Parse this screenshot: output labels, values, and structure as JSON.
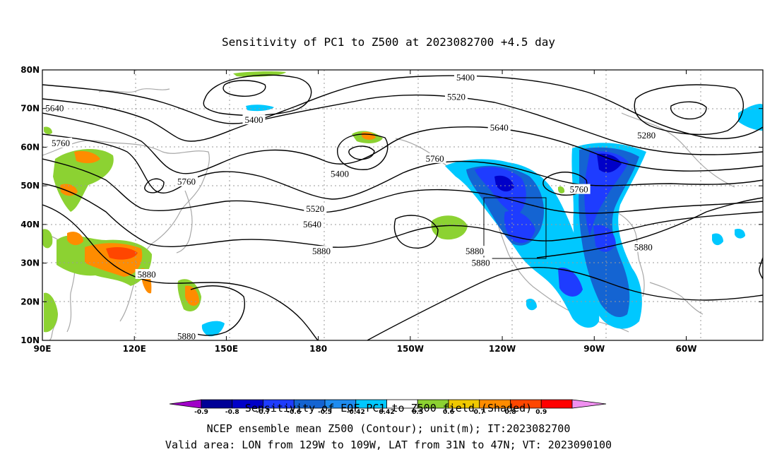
{
  "title": "Sensitivity of PC1 to Z500 at 2023082700 +4.5 day",
  "footer": {
    "line1": "Sensitivity of EOF PC1 to Z500 field (Shaded)",
    "line2": "NCEP ensemble mean Z500 (Contour); unit(m); IT:2023082700",
    "line3": "Valid area: LON from 129W to 109W, LAT from 31N to 47N; VT: 2023090100"
  },
  "chart_data": {
    "type": "heatmap",
    "title": "Sensitivity of PC1 to Z500 at 2023082700 +4.5 day",
    "map_extent": {
      "lon_min": 90,
      "lon_max": 325,
      "lat_min": 10,
      "lat_max": 80
    },
    "grid": true,
    "x_ticks": [
      {
        "lon": 90,
        "label": "90E"
      },
      {
        "lon": 120,
        "label": "120E"
      },
      {
        "lon": 150,
        "label": "150E"
      },
      {
        "lon": 180,
        "label": "180"
      },
      {
        "lon": 210,
        "label": "150W"
      },
      {
        "lon": 240,
        "label": "120W"
      },
      {
        "lon": 270,
        "label": "90W"
      },
      {
        "lon": 300,
        "label": "60W"
      }
    ],
    "y_ticks": [
      {
        "lat": 80,
        "label": "80N"
      },
      {
        "lat": 70,
        "label": "70N"
      },
      {
        "lat": 60,
        "label": "60N"
      },
      {
        "lat": 50,
        "label": "50N"
      },
      {
        "lat": 40,
        "label": "40N"
      },
      {
        "lat": 30,
        "label": "30N"
      },
      {
        "lat": 20,
        "label": "20N"
      },
      {
        "lat": 10,
        "label": "10N"
      }
    ],
    "colorbar": {
      "levels": [
        "-0.9",
        "-0.8",
        "-0.7",
        "-0.6",
        "-0.5",
        "-0.42",
        "0.42",
        "0.5",
        "0.6",
        "0.7",
        "0.8",
        "0.9"
      ],
      "colors": [
        "#a000c8",
        "#000096",
        "#0000c8",
        "#1e3cff",
        "#1464d2",
        "#1e8cf0",
        "#00c8ff",
        "#ffffff",
        "#8cd232",
        "#f0c800",
        "#ff8c00",
        "#ff4600",
        "#ff0000",
        "#f090f0"
      ]
    },
    "valid_area_box": {
      "lon_min": 231,
      "lon_max": 251,
      "lat_min": 31,
      "lat_max": 47
    },
    "contour_levels": [
      5280,
      5400,
      5520,
      5640,
      5760,
      5880
    ],
    "contour_labels": [
      {
        "text": "5640",
        "lon": 94,
        "lat": 70
      },
      {
        "text": "5760",
        "lon": 96,
        "lat": 61
      },
      {
        "text": "5400",
        "lon": 159,
        "lat": 67
      },
      {
        "text": "5400",
        "lon": 228,
        "lat": 78
      },
      {
        "text": "5520",
        "lon": 225,
        "lat": 73
      },
      {
        "text": "5400",
        "lon": 187,
        "lat": 53
      },
      {
        "text": "5760",
        "lon": 137,
        "lat": 51
      },
      {
        "text": "5520",
        "lon": 179,
        "lat": 44
      },
      {
        "text": "5640",
        "lon": 178,
        "lat": 40
      },
      {
        "text": "5880",
        "lon": 181,
        "lat": 33
      },
      {
        "text": "5640",
        "lon": 239,
        "lat": 65
      },
      {
        "text": "5760",
        "lon": 218,
        "lat": 57
      },
      {
        "text": "5760",
        "lon": 265,
        "lat": 49
      },
      {
        "text": "5280",
        "lon": 287,
        "lat": 63
      },
      {
        "text": "5880",
        "lon": 231,
        "lat": 33
      },
      {
        "text": "5880",
        "lon": 233,
        "lat": 30
      },
      {
        "text": "5880",
        "lon": 286,
        "lat": 34
      },
      {
        "text": "5880",
        "lon": 124,
        "lat": 27
      },
      {
        "text": "5880",
        "lon": 137,
        "lat": 11
      }
    ]
  }
}
